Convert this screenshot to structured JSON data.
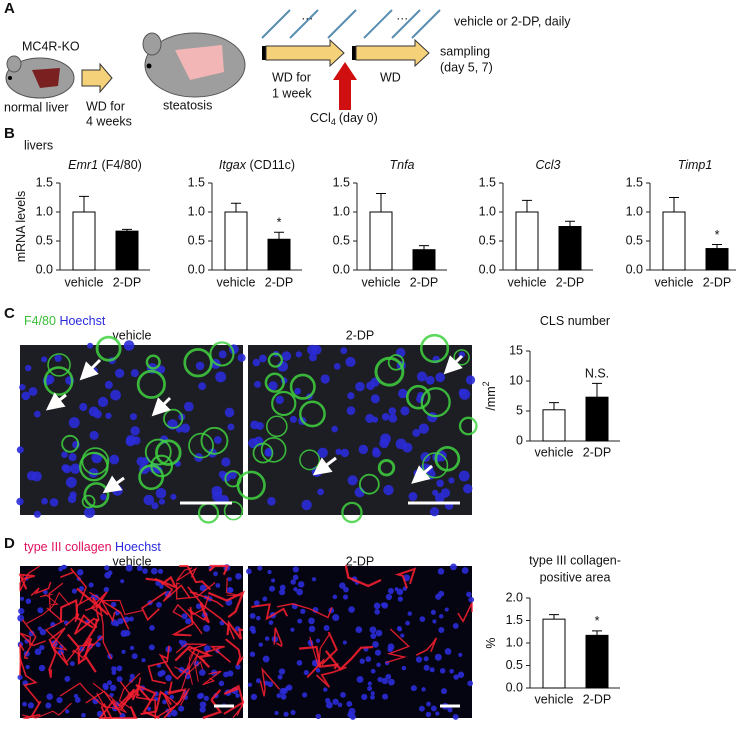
{
  "panel_labels": [
    "A",
    "B",
    "C",
    "D"
  ],
  "schematic": {
    "strain": "MC4R-KO",
    "normal": "normal liver",
    "step1": [
      "WD for",
      "4 weeks"
    ],
    "steatosis": "steatosis",
    "step2": [
      "WD for",
      "1 week"
    ],
    "ccl4": [
      "CCl",
      "4",
      "(day 0)"
    ],
    "step3": "WD",
    "dots": [
      "…",
      "…"
    ],
    "treatment": "vehicle or 2-DP, daily",
    "sampling": [
      "sampling",
      "(day 5, 7)"
    ]
  },
  "B": {
    "subtitle": "livers"
  },
  "C": {
    "stain": [
      "F4/80",
      "Hoechst"
    ],
    "image_labels": [
      "vehicle",
      "2-DP"
    ]
  },
  "D": {
    "stain": [
      "type III collagen",
      "Hoechst"
    ],
    "image_labels": [
      "vehicle",
      "2-DP"
    ]
  },
  "chart_data": [
    {
      "type": "bar",
      "title": "Emr1",
      "title_note": "(F4/80)",
      "ylabel": "mRNA levels",
      "categories": [
        "vehicle",
        "2-DP"
      ],
      "values": [
        1.0,
        0.67
      ],
      "errors": [
        0.27,
        0.03
      ],
      "colors": [
        "#ffffff",
        "#000000"
      ],
      "ylim": [
        0,
        1.5
      ],
      "yticks": [
        {
          "value": 0,
          "label": "0.0"
        },
        0.5,
        {
          "value": 1,
          "label": "1.0"
        },
        1.5
      ],
      "annotations": [
        null,
        null
      ]
    },
    {
      "type": "bar",
      "title": "Itgax",
      "title_note": "(CD11c)",
      "categories": [
        "vehicle",
        "2-DP"
      ],
      "values": [
        1.0,
        0.53
      ],
      "errors": [
        0.15,
        0.12
      ],
      "colors": [
        "#ffffff",
        "#000000"
      ],
      "ylim": [
        0,
        1.5
      ],
      "yticks": [
        {
          "value": 0,
          "label": "0.0"
        },
        0.5,
        {
          "value": 1,
          "label": "1.0"
        },
        1.5
      ],
      "annotations": [
        null,
        "*"
      ]
    },
    {
      "type": "bar",
      "title": "Tnfa",
      "categories": [
        "vehicle",
        "2-DP"
      ],
      "values": [
        1.0,
        0.35
      ],
      "errors": [
        0.32,
        0.07
      ],
      "colors": [
        "#ffffff",
        "#000000"
      ],
      "ylim": [
        0,
        1.5
      ],
      "yticks": [
        {
          "value": 0,
          "label": "0.0"
        },
        0.5,
        {
          "value": 1,
          "label": "1.0"
        },
        1.5
      ],
      "annotations": [
        null,
        null
      ]
    },
    {
      "type": "bar",
      "title": "Ccl3",
      "categories": [
        "vehicle",
        "2-DP"
      ],
      "values": [
        1.0,
        0.75
      ],
      "errors": [
        0.2,
        0.09
      ],
      "colors": [
        "#ffffff",
        "#000000"
      ],
      "ylim": [
        0,
        1.5
      ],
      "yticks": [
        {
          "value": 0,
          "label": "0.0"
        },
        0.5,
        {
          "value": 1,
          "label": "1.0"
        },
        1.5
      ],
      "annotations": [
        null,
        null
      ]
    },
    {
      "type": "bar",
      "title": "Timp1",
      "categories": [
        "vehicle",
        "2-DP"
      ],
      "values": [
        1.0,
        0.37
      ],
      "errors": [
        0.25,
        0.07
      ],
      "colors": [
        "#ffffff",
        "#000000"
      ],
      "ylim": [
        0,
        1.5
      ],
      "yticks": [
        {
          "value": 0,
          "label": "0.0"
        },
        0.5,
        {
          "value": 1,
          "label": "1.0"
        },
        1.5
      ],
      "annotations": [
        null,
        "*"
      ]
    },
    {
      "type": "bar",
      "title": "CLS number",
      "ylabel": [
        "/mm",
        "2"
      ],
      "categories": [
        "vehicle",
        "2-DP"
      ],
      "values": [
        5.2,
        7.3
      ],
      "errors": [
        1.2,
        2.3
      ],
      "colors": [
        "#ffffff",
        "#000000"
      ],
      "ylim": [
        0,
        15
      ],
      "yticks": [
        0,
        5,
        10,
        15
      ],
      "annotations": [
        null,
        "N.S."
      ]
    },
    {
      "type": "bar",
      "title": [
        "type III collagen-",
        "positive area"
      ],
      "ylabel": "%",
      "categories": [
        "vehicle",
        "2-DP"
      ],
      "values": [
        1.53,
        1.17
      ],
      "errors": [
        0.1,
        0.1
      ],
      "colors": [
        "#ffffff",
        "#000000"
      ],
      "ylim": [
        0,
        2
      ],
      "yticks": [
        {
          "value": 0,
          "label": "0.0"
        },
        0.5,
        {
          "value": 1,
          "label": "1.0"
        },
        1.5,
        {
          "value": 2,
          "label": "2.0"
        }
      ],
      "annotations": [
        null,
        "*"
      ]
    }
  ]
}
